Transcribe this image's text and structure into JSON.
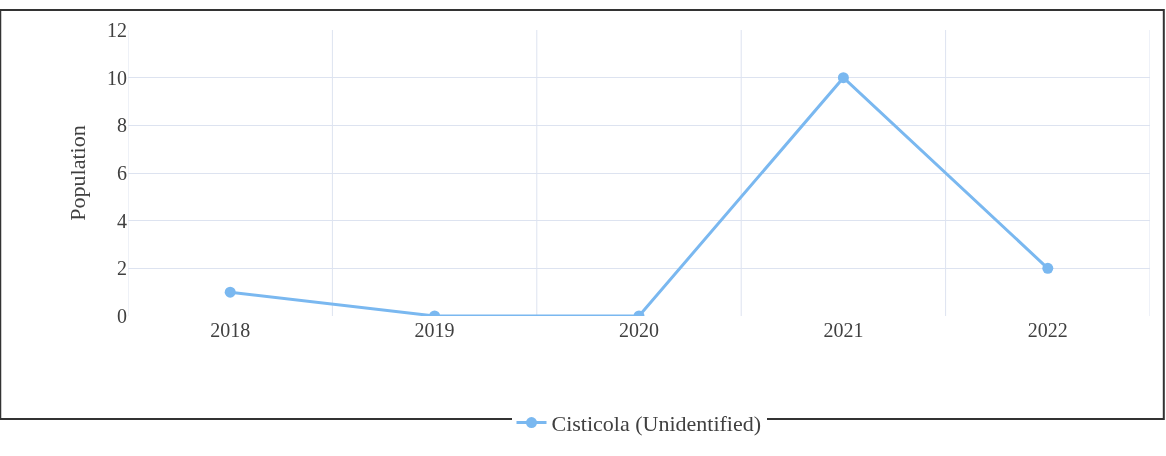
{
  "chart_data": {
    "type": "line",
    "ylabel": "Population",
    "categories": [
      "2018",
      "2019",
      "2020",
      "2021",
      "2022"
    ],
    "series": [
      {
        "name": "Cisticola (Unidentified)",
        "color": "#7ab8f0",
        "values": [
          1,
          0,
          0,
          10,
          2
        ]
      }
    ],
    "ylim": [
      0,
      12
    ],
    "yticks": [
      0,
      2,
      4,
      6,
      8,
      10,
      12
    ],
    "grid": true,
    "legend": "bottom",
    "marker": "circle",
    "line_style": "solid"
  }
}
